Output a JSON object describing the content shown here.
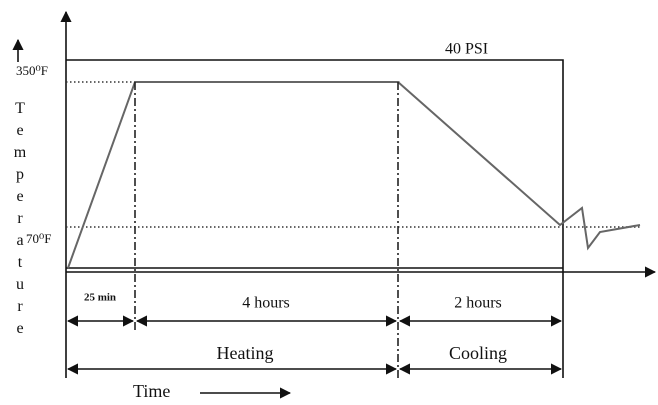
{
  "pressure_label": "40 PSI",
  "y_axis": {
    "label": "Temperature",
    "high_label": "350⁰F",
    "low_label": "70⁰F"
  },
  "durations": [
    "25 min",
    "4 hours",
    "2 hours"
  ],
  "phases": [
    "Heating",
    "Cooling"
  ],
  "x_axis": {
    "label": "Time"
  }
}
